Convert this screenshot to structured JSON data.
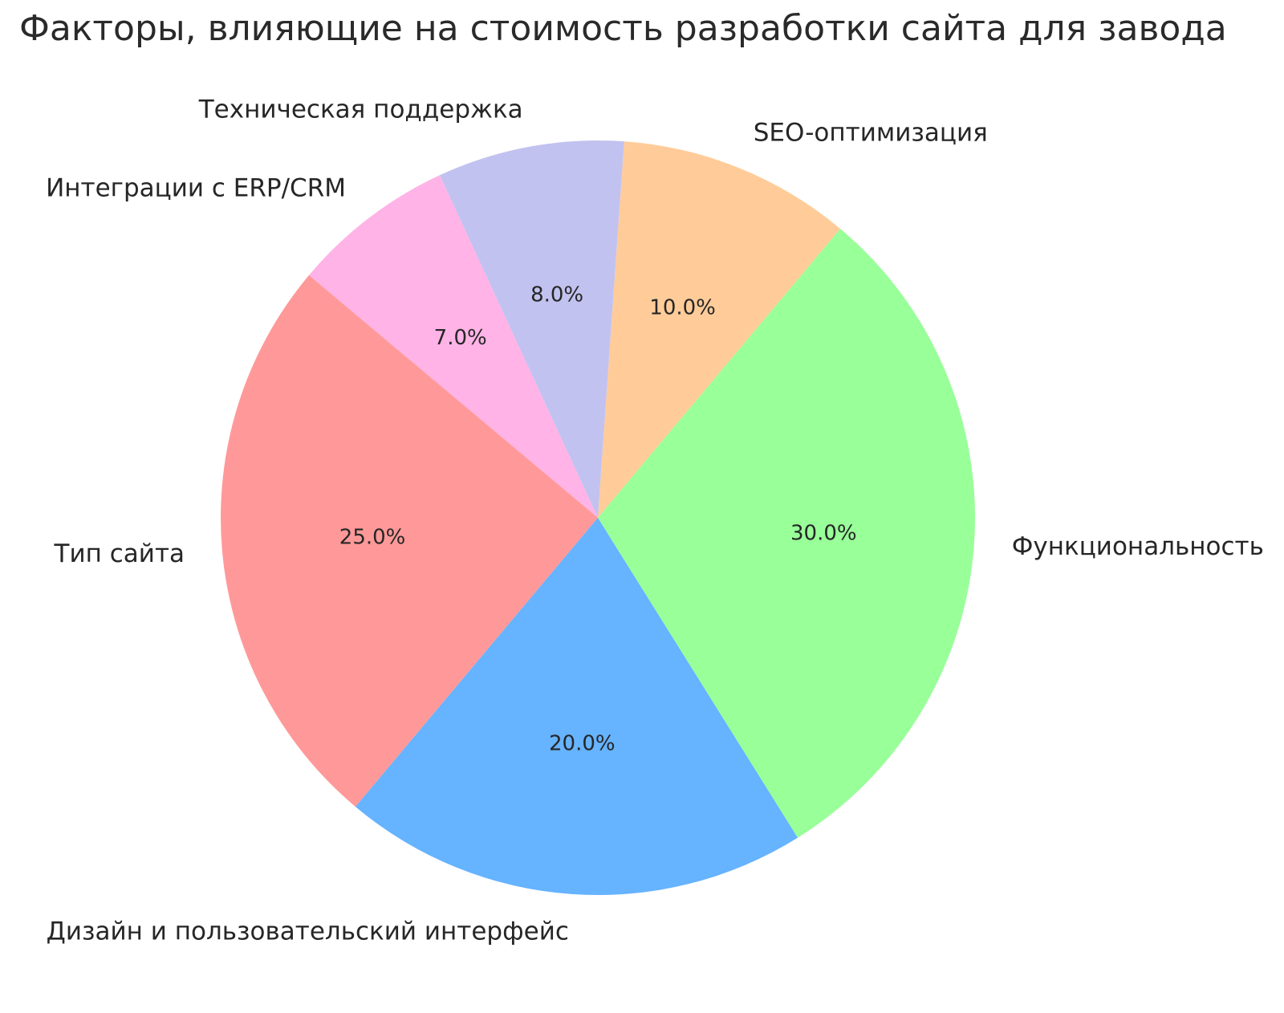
{
  "chart": {
    "title": "Факторы, влияющие на стоимость разработки сайта для завода"
  },
  "chart_data": {
    "type": "pie",
    "title": "Факторы, влияющие на стоимость разработки сайта для завода",
    "labels": [
      "SEO-оптимизация",
      "Техническая поддержка",
      "Интеграции с ERP/CRM",
      "Тип сайта",
      "Дизайн и пользовательский интерфейс",
      "Функциональность"
    ],
    "values": [
      10,
      8,
      7,
      25,
      20,
      30
    ],
    "percent_labels": [
      "10.0%",
      "8.0%",
      "7.0%",
      "25.0%",
      "20.0%",
      "30.0%"
    ],
    "colors": [
      "#ffcc99",
      "#c2c2f0",
      "#ffb3e6",
      "#ff9999",
      "#66b3ff",
      "#99ff99"
    ],
    "startangle_deg": 50,
    "direction": "counterclockwise",
    "percent_radius": 0.6,
    "label_radius": 1.1,
    "text_color": "#262626",
    "background": "#ffffff",
    "legend": "none",
    "layout_hint": "labels outside slices, percents inside slices"
  }
}
